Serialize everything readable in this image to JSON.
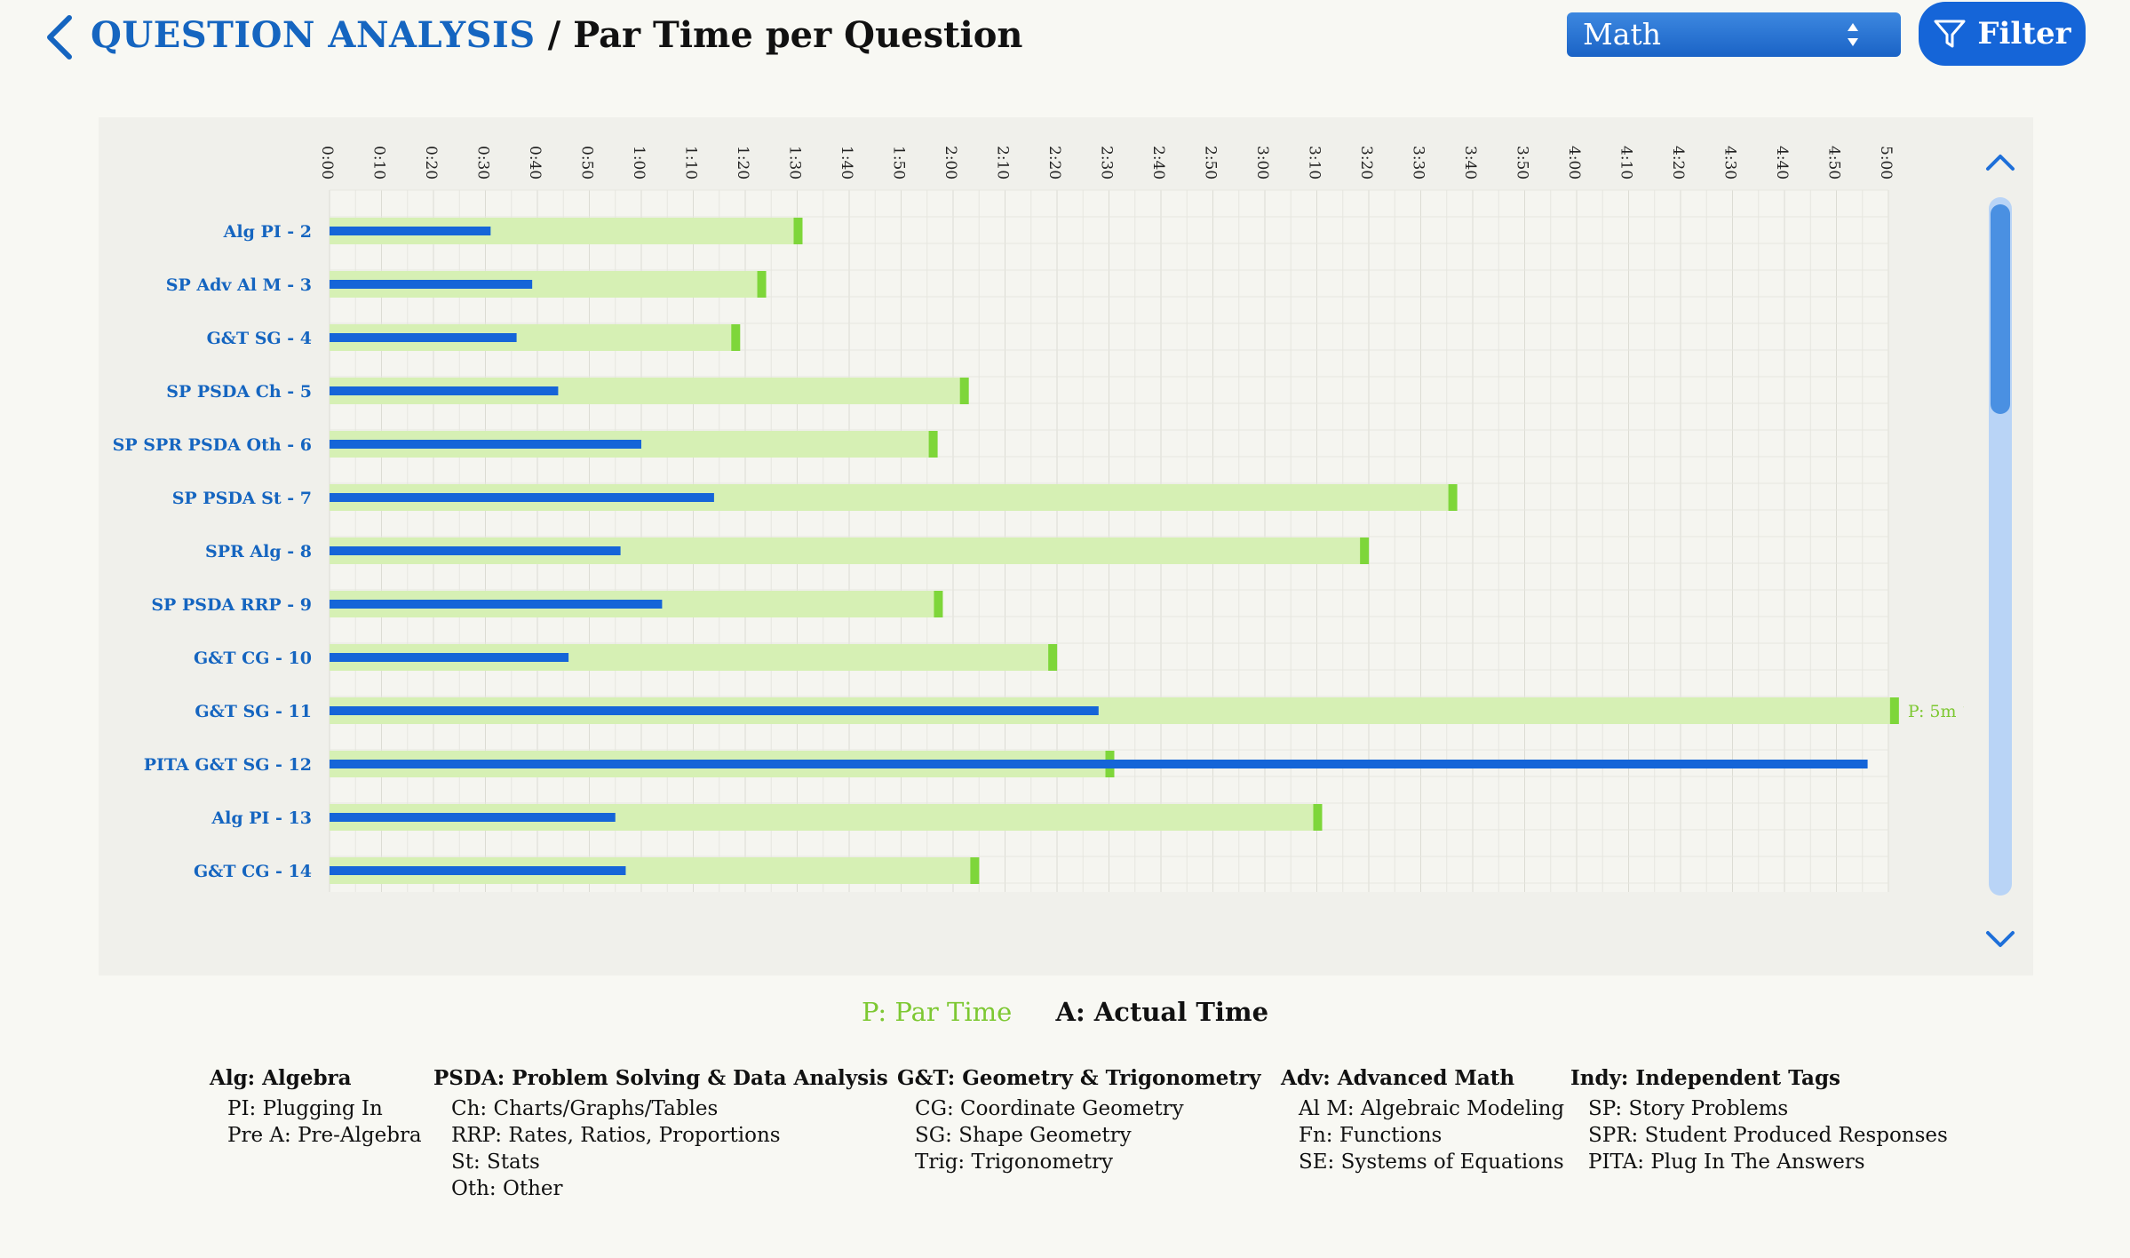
{
  "header": {
    "breadcrumb": "QUESTION ANALYSIS",
    "separator": " / ",
    "page_title": "Par Time per Question",
    "subject_select_value": "Math",
    "filter_label": "Filter"
  },
  "colors": {
    "accent_blue": "#1565c0",
    "actual_bar": "#1565d8",
    "par_fill": "#d6f0b4",
    "par_marker": "#7ed63a",
    "par_text": "#7dc832"
  },
  "chart_data": {
    "type": "bar",
    "orientation": "horizontal",
    "x_axis_unit": "m:ss",
    "x_range_seconds": [
      0,
      300
    ],
    "x_tick_labels": [
      "0:00",
      "0:10",
      "0:20",
      "0:30",
      "0:40",
      "0:50",
      "1:00",
      "1:10",
      "1:20",
      "1:30",
      "1:40",
      "1:50",
      "2:00",
      "2:10",
      "2:20",
      "2:30",
      "2:40",
      "2:50",
      "3:00",
      "3:10",
      "3:20",
      "3:30",
      "3:40",
      "3:50",
      "4:00",
      "4:10",
      "4:20",
      "4:30",
      "4:40",
      "4:50",
      "5:00"
    ],
    "grid": true,
    "categories": [
      "Alg PI - 2",
      "SP Adv Al M - 3",
      "G&T SG - 4",
      "SP PSDA Ch - 5",
      "SP SPR PSDA Oth - 6",
      "SP PSDA St - 7",
      "SPR Alg - 8",
      "SP PSDA RRP - 9",
      "G&T CG - 10",
      "G&T SG - 11",
      "PITA G&T SG - 12",
      "Alg PI - 13",
      "G&T CG - 14"
    ],
    "series": [
      {
        "name": "P: Par Time",
        "values_seconds": [
          90,
          83,
          78,
          122,
          116,
          216,
          199,
          117,
          139,
          301,
          150,
          190,
          124
        ]
      },
      {
        "name": "A: Actual Time",
        "values_seconds": [
          31,
          39,
          36,
          44,
          60,
          74,
          56,
          64,
          46,
          148,
          296,
          55,
          57
        ]
      }
    ],
    "annotations": [
      {
        "category": "G&T SG - 11",
        "text": "P: 5m 1s"
      }
    ]
  },
  "legend": {
    "par": "P: Par Time",
    "actual": "A: Actual Time"
  },
  "abbreviations": [
    {
      "heading": "Alg: Algebra",
      "items": [
        "PI: Plugging In",
        "Pre A: Pre-Algebra"
      ]
    },
    {
      "heading": "PSDA: Problem Solving & Data Analysis",
      "items": [
        "Ch: Charts/Graphs/Tables",
        "RRP: Rates, Ratios, Proportions",
        "St: Stats",
        "Oth: Other"
      ]
    },
    {
      "heading": "G&T: Geometry & Trigonometry",
      "items": [
        "CG: Coordinate Geometry",
        "SG: Shape Geometry",
        "Trig: Trigonometry"
      ]
    },
    {
      "heading": "Adv: Advanced Math",
      "items": [
        "Al M: Algebraic Modeling",
        "Fn: Functions",
        "SE: Systems of Equations"
      ]
    },
    {
      "heading": "Indy: Independent Tags",
      "items": [
        "SP: Story Problems",
        "SPR: Student Produced Responses",
        "PITA: Plug In The Answers"
      ]
    }
  ]
}
